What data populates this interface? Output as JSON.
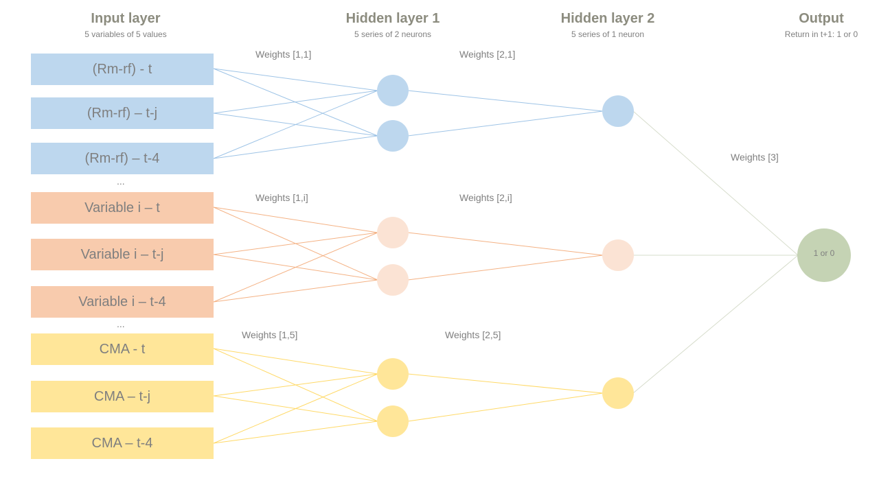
{
  "headers": {
    "input": {
      "title": "Input layer",
      "subtitle": "5 variables of 5 values"
    },
    "hidden1": {
      "title": "Hidden layer 1",
      "subtitle": "5 series of 2 neurons"
    },
    "hidden2": {
      "title": "Hidden layer 2",
      "subtitle": "5 series of 1 neuron"
    },
    "output": {
      "title": "Output",
      "subtitle": "Return in t+1: 1 or 0"
    }
  },
  "groups": [
    {
      "color": "#bdd7ee",
      "line_color": "#9dc3e6",
      "inputs": [
        "(Rm-rf)  - t",
        "(Rm-rf)  – t-j",
        "(Rm-rf)  – t-4"
      ],
      "weights1": "Weights [1,1]",
      "weights2": "Weights [2,1]"
    },
    {
      "color": "#f8cbad",
      "line_color": "#f4b183",
      "inputs": [
        "Variable i – t",
        "Variable i – t-j",
        "Variable i – t-4"
      ],
      "weights1": "Weights [1,i]",
      "weights2": "Weights [2,i]",
      "neuron_color": "#fbe3d4"
    },
    {
      "color": "#ffe699",
      "line_color": "#ffd966",
      "inputs": [
        "CMA - t",
        "CMA – t-j",
        "CMA – t-4"
      ],
      "weights1": "Weights [1,5]",
      "weights2": "Weights [2,5]"
    }
  ],
  "ellipsis": "...",
  "weights3": "Weights [3]",
  "output_node": {
    "label": "1 or 0",
    "color": "#c5d3b4"
  }
}
